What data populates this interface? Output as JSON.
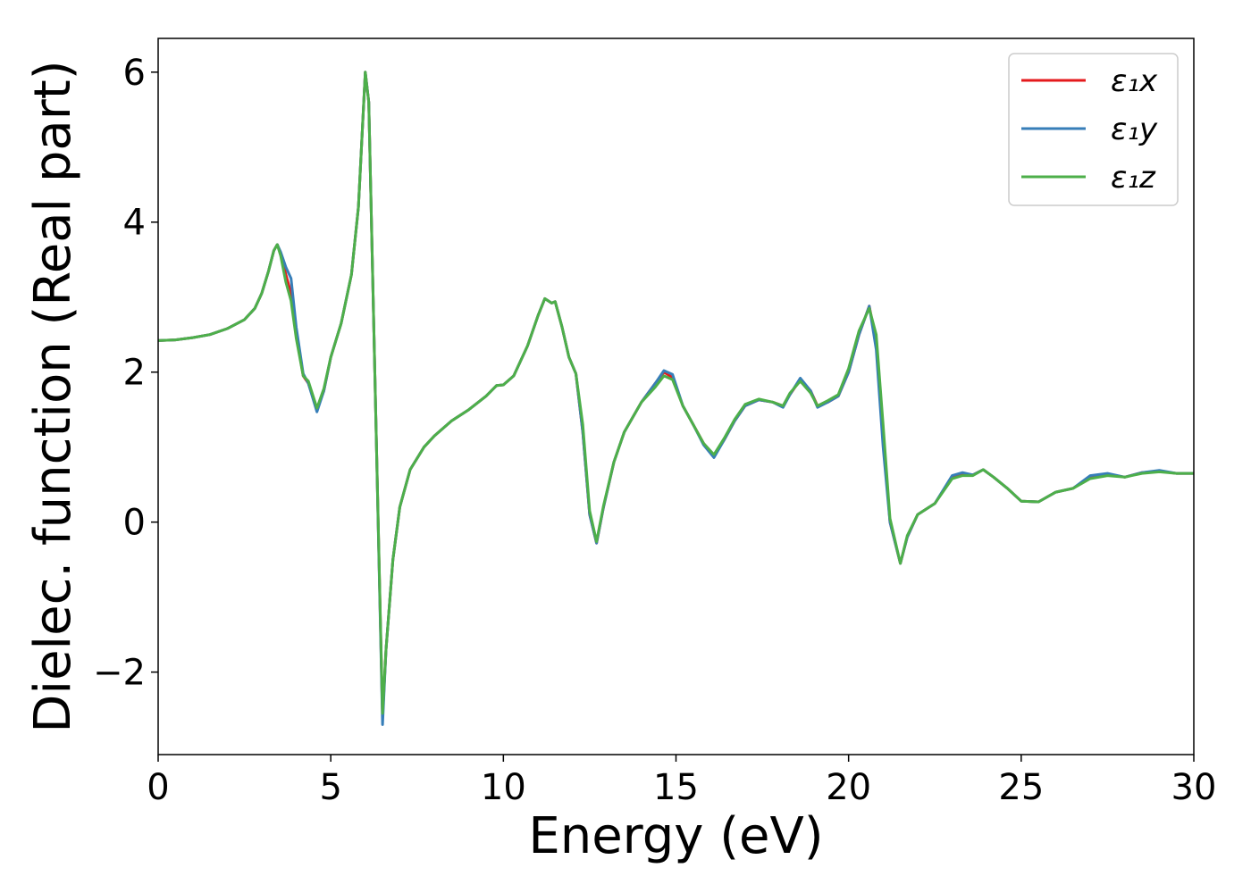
{
  "chart_data": {
    "type": "line",
    "xlabel": "Energy (eV)",
    "ylabel": "Dielec. function (Real part)",
    "xlim": [
      0,
      30
    ],
    "ylim": [
      -3.1,
      6.45
    ],
    "xticks": [
      0,
      5,
      10,
      15,
      20,
      25,
      30
    ],
    "yticks": [
      -2,
      0,
      2,
      4,
      6
    ],
    "ytick_labels": [
      "−2",
      "0",
      "2",
      "4",
      "6"
    ],
    "legend_position": "top-right",
    "grid": false,
    "series": [
      {
        "name": "ε₁x",
        "color": "#e41a1c",
        "points": [
          [
            0,
            2.42
          ],
          [
            0.5,
            2.43
          ],
          [
            1,
            2.46
          ],
          [
            1.5,
            2.5
          ],
          [
            2,
            2.58
          ],
          [
            2.5,
            2.7
          ],
          [
            2.8,
            2.85
          ],
          [
            3,
            3.05
          ],
          [
            3.2,
            3.35
          ],
          [
            3.35,
            3.62
          ],
          [
            3.45,
            3.7
          ],
          [
            3.55,
            3.58
          ],
          [
            3.7,
            3.3
          ],
          [
            3.85,
            3.05
          ],
          [
            4,
            2.5
          ],
          [
            4.2,
            1.95
          ],
          [
            4.35,
            1.85
          ],
          [
            4.6,
            1.5
          ],
          [
            4.8,
            1.75
          ],
          [
            5,
            2.2
          ],
          [
            5.3,
            2.65
          ],
          [
            5.6,
            3.3
          ],
          [
            5.8,
            4.2
          ],
          [
            6.0,
            6.0
          ],
          [
            6.1,
            5.6
          ],
          [
            6.3,
            1.5
          ],
          [
            6.5,
            -2.6
          ],
          [
            6.6,
            -1.7
          ],
          [
            6.8,
            -0.5
          ],
          [
            7,
            0.2
          ],
          [
            7.3,
            0.7
          ],
          [
            7.7,
            1.0
          ],
          [
            8,
            1.15
          ],
          [
            8.5,
            1.35
          ],
          [
            9,
            1.5
          ],
          [
            9.5,
            1.68
          ],
          [
            9.8,
            1.82
          ],
          [
            10,
            1.83
          ],
          [
            10.3,
            1.95
          ],
          [
            10.7,
            2.35
          ],
          [
            11,
            2.75
          ],
          [
            11.2,
            2.98
          ],
          [
            11.4,
            2.92
          ],
          [
            11.5,
            2.94
          ],
          [
            11.7,
            2.6
          ],
          [
            11.9,
            2.2
          ],
          [
            12.1,
            1.98
          ],
          [
            12.3,
            1.2
          ],
          [
            12.5,
            0.1
          ],
          [
            12.7,
            -0.28
          ],
          [
            12.9,
            0.2
          ],
          [
            13.2,
            0.8
          ],
          [
            13.5,
            1.2
          ],
          [
            14,
            1.6
          ],
          [
            14.4,
            1.85
          ],
          [
            14.65,
            2.0
          ],
          [
            14.9,
            1.93
          ],
          [
            15.2,
            1.55
          ],
          [
            15.5,
            1.3
          ],
          [
            15.8,
            1.05
          ],
          [
            16.1,
            0.88
          ],
          [
            16.4,
            1.1
          ],
          [
            16.7,
            1.35
          ],
          [
            17,
            1.55
          ],
          [
            17.4,
            1.63
          ],
          [
            17.8,
            1.6
          ],
          [
            18.1,
            1.55
          ],
          [
            18.3,
            1.7
          ],
          [
            18.6,
            1.9
          ],
          [
            18.9,
            1.75
          ],
          [
            19.1,
            1.55
          ],
          [
            19.4,
            1.6
          ],
          [
            19.7,
            1.68
          ],
          [
            20,
            2.0
          ],
          [
            20.3,
            2.5
          ],
          [
            20.6,
            2.88
          ],
          [
            20.8,
            2.4
          ],
          [
            21.0,
            1.2
          ],
          [
            21.2,
            0.0
          ],
          [
            21.5,
            -0.55
          ],
          [
            21.7,
            -0.2
          ],
          [
            22,
            0.1
          ],
          [
            22.5,
            0.25
          ],
          [
            23,
            0.6
          ],
          [
            23.3,
            0.65
          ],
          [
            23.6,
            0.63
          ],
          [
            23.9,
            0.7
          ],
          [
            24.2,
            0.6
          ],
          [
            24.6,
            0.45
          ],
          [
            25,
            0.28
          ],
          [
            25.5,
            0.27
          ],
          [
            26,
            0.4
          ],
          [
            26.5,
            0.45
          ],
          [
            27,
            0.6
          ],
          [
            27.5,
            0.64
          ],
          [
            28,
            0.6
          ],
          [
            28.5,
            0.66
          ],
          [
            29,
            0.68
          ],
          [
            29.5,
            0.65
          ],
          [
            30,
            0.65
          ]
        ]
      },
      {
        "name": "ε₁y",
        "color": "#377eb8",
        "points": [
          [
            0,
            2.42
          ],
          [
            0.5,
            2.43
          ],
          [
            1,
            2.46
          ],
          [
            1.5,
            2.5
          ],
          [
            2,
            2.58
          ],
          [
            2.5,
            2.7
          ],
          [
            2.8,
            2.85
          ],
          [
            3,
            3.05
          ],
          [
            3.2,
            3.35
          ],
          [
            3.35,
            3.62
          ],
          [
            3.45,
            3.7
          ],
          [
            3.55,
            3.6
          ],
          [
            3.7,
            3.4
          ],
          [
            3.85,
            3.25
          ],
          [
            4,
            2.6
          ],
          [
            4.2,
            1.98
          ],
          [
            4.35,
            1.85
          ],
          [
            4.6,
            1.47
          ],
          [
            4.8,
            1.75
          ],
          [
            5,
            2.2
          ],
          [
            5.3,
            2.65
          ],
          [
            5.6,
            3.3
          ],
          [
            5.8,
            4.2
          ],
          [
            6.0,
            6.0
          ],
          [
            6.1,
            5.6
          ],
          [
            6.3,
            1.5
          ],
          [
            6.5,
            -2.7
          ],
          [
            6.6,
            -1.7
          ],
          [
            6.8,
            -0.5
          ],
          [
            7,
            0.2
          ],
          [
            7.3,
            0.7
          ],
          [
            7.7,
            1.0
          ],
          [
            8,
            1.15
          ],
          [
            8.5,
            1.35
          ],
          [
            9,
            1.5
          ],
          [
            9.5,
            1.68
          ],
          [
            9.8,
            1.82
          ],
          [
            10,
            1.83
          ],
          [
            10.3,
            1.95
          ],
          [
            10.7,
            2.35
          ],
          [
            11,
            2.75
          ],
          [
            11.2,
            2.98
          ],
          [
            11.4,
            2.92
          ],
          [
            11.5,
            2.94
          ],
          [
            11.7,
            2.6
          ],
          [
            11.9,
            2.2
          ],
          [
            12.1,
            1.98
          ],
          [
            12.3,
            1.2
          ],
          [
            12.5,
            0.1
          ],
          [
            12.7,
            -0.28
          ],
          [
            12.9,
            0.2
          ],
          [
            13.2,
            0.8
          ],
          [
            13.5,
            1.2
          ],
          [
            14,
            1.6
          ],
          [
            14.4,
            1.85
          ],
          [
            14.65,
            2.02
          ],
          [
            14.9,
            1.97
          ],
          [
            15.2,
            1.55
          ],
          [
            15.5,
            1.3
          ],
          [
            15.8,
            1.03
          ],
          [
            16.1,
            0.86
          ],
          [
            16.4,
            1.1
          ],
          [
            16.7,
            1.35
          ],
          [
            17,
            1.55
          ],
          [
            17.4,
            1.63
          ],
          [
            17.8,
            1.6
          ],
          [
            18.1,
            1.53
          ],
          [
            18.3,
            1.7
          ],
          [
            18.6,
            1.92
          ],
          [
            18.9,
            1.75
          ],
          [
            19.1,
            1.53
          ],
          [
            19.4,
            1.6
          ],
          [
            19.7,
            1.68
          ],
          [
            20,
            2.0
          ],
          [
            20.3,
            2.5
          ],
          [
            20.6,
            2.88
          ],
          [
            20.8,
            2.3
          ],
          [
            21.0,
            1.0
          ],
          [
            21.2,
            0.0
          ],
          [
            21.5,
            -0.55
          ],
          [
            21.7,
            -0.2
          ],
          [
            22,
            0.1
          ],
          [
            22.5,
            0.25
          ],
          [
            23,
            0.62
          ],
          [
            23.3,
            0.66
          ],
          [
            23.6,
            0.63
          ],
          [
            23.9,
            0.7
          ],
          [
            24.2,
            0.6
          ],
          [
            24.6,
            0.45
          ],
          [
            25,
            0.28
          ],
          [
            25.5,
            0.27
          ],
          [
            26,
            0.4
          ],
          [
            26.5,
            0.45
          ],
          [
            27,
            0.62
          ],
          [
            27.5,
            0.65
          ],
          [
            28,
            0.6
          ],
          [
            28.5,
            0.66
          ],
          [
            29,
            0.69
          ],
          [
            29.5,
            0.65
          ],
          [
            30,
            0.65
          ]
        ]
      },
      {
        "name": "ε₁z",
        "color": "#4daf4a",
        "points": [
          [
            0,
            2.42
          ],
          [
            0.5,
            2.43
          ],
          [
            1,
            2.46
          ],
          [
            1.5,
            2.5
          ],
          [
            2,
            2.58
          ],
          [
            2.5,
            2.7
          ],
          [
            2.8,
            2.85
          ],
          [
            3,
            3.05
          ],
          [
            3.2,
            3.35
          ],
          [
            3.35,
            3.62
          ],
          [
            3.45,
            3.7
          ],
          [
            3.55,
            3.55
          ],
          [
            3.7,
            3.2
          ],
          [
            3.85,
            2.95
          ],
          [
            4,
            2.45
          ],
          [
            4.2,
            1.95
          ],
          [
            4.35,
            1.88
          ],
          [
            4.6,
            1.52
          ],
          [
            4.8,
            1.78
          ],
          [
            5,
            2.2
          ],
          [
            5.3,
            2.65
          ],
          [
            5.6,
            3.3
          ],
          [
            5.8,
            4.2
          ],
          [
            6.0,
            6.0
          ],
          [
            6.1,
            5.6
          ],
          [
            6.3,
            1.5
          ],
          [
            6.5,
            -2.55
          ],
          [
            6.6,
            -1.7
          ],
          [
            6.8,
            -0.5
          ],
          [
            7,
            0.2
          ],
          [
            7.3,
            0.7
          ],
          [
            7.7,
            1.0
          ],
          [
            8,
            1.15
          ],
          [
            8.5,
            1.35
          ],
          [
            9,
            1.5
          ],
          [
            9.5,
            1.68
          ],
          [
            9.8,
            1.82
          ],
          [
            10,
            1.83
          ],
          [
            10.3,
            1.95
          ],
          [
            10.7,
            2.35
          ],
          [
            11,
            2.75
          ],
          [
            11.2,
            2.98
          ],
          [
            11.4,
            2.92
          ],
          [
            11.5,
            2.94
          ],
          [
            11.7,
            2.6
          ],
          [
            11.9,
            2.2
          ],
          [
            12.1,
            1.98
          ],
          [
            12.3,
            1.3
          ],
          [
            12.5,
            0.15
          ],
          [
            12.7,
            -0.26
          ],
          [
            12.9,
            0.22
          ],
          [
            13.2,
            0.8
          ],
          [
            13.5,
            1.2
          ],
          [
            14,
            1.6
          ],
          [
            14.4,
            1.8
          ],
          [
            14.65,
            1.95
          ],
          [
            14.9,
            1.9
          ],
          [
            15.2,
            1.55
          ],
          [
            15.5,
            1.3
          ],
          [
            15.8,
            1.05
          ],
          [
            16.1,
            0.9
          ],
          [
            16.4,
            1.12
          ],
          [
            16.7,
            1.37
          ],
          [
            17,
            1.57
          ],
          [
            17.4,
            1.64
          ],
          [
            17.8,
            1.6
          ],
          [
            18.1,
            1.55
          ],
          [
            18.3,
            1.72
          ],
          [
            18.6,
            1.88
          ],
          [
            18.9,
            1.72
          ],
          [
            19.1,
            1.55
          ],
          [
            19.4,
            1.62
          ],
          [
            19.7,
            1.7
          ],
          [
            20,
            2.05
          ],
          [
            20.3,
            2.55
          ],
          [
            20.6,
            2.85
          ],
          [
            20.8,
            2.5
          ],
          [
            21.0,
            1.3
          ],
          [
            21.2,
            0.05
          ],
          [
            21.5,
            -0.55
          ],
          [
            21.7,
            -0.18
          ],
          [
            22,
            0.1
          ],
          [
            22.5,
            0.25
          ],
          [
            23,
            0.58
          ],
          [
            23.3,
            0.62
          ],
          [
            23.6,
            0.62
          ],
          [
            23.9,
            0.7
          ],
          [
            24.2,
            0.6
          ],
          [
            24.6,
            0.45
          ],
          [
            25,
            0.28
          ],
          [
            25.5,
            0.27
          ],
          [
            26,
            0.4
          ],
          [
            26.5,
            0.45
          ],
          [
            27,
            0.58
          ],
          [
            27.5,
            0.62
          ],
          [
            28,
            0.6
          ],
          [
            28.5,
            0.65
          ],
          [
            29,
            0.67
          ],
          [
            29.5,
            0.65
          ],
          [
            30,
            0.65
          ]
        ]
      }
    ]
  }
}
